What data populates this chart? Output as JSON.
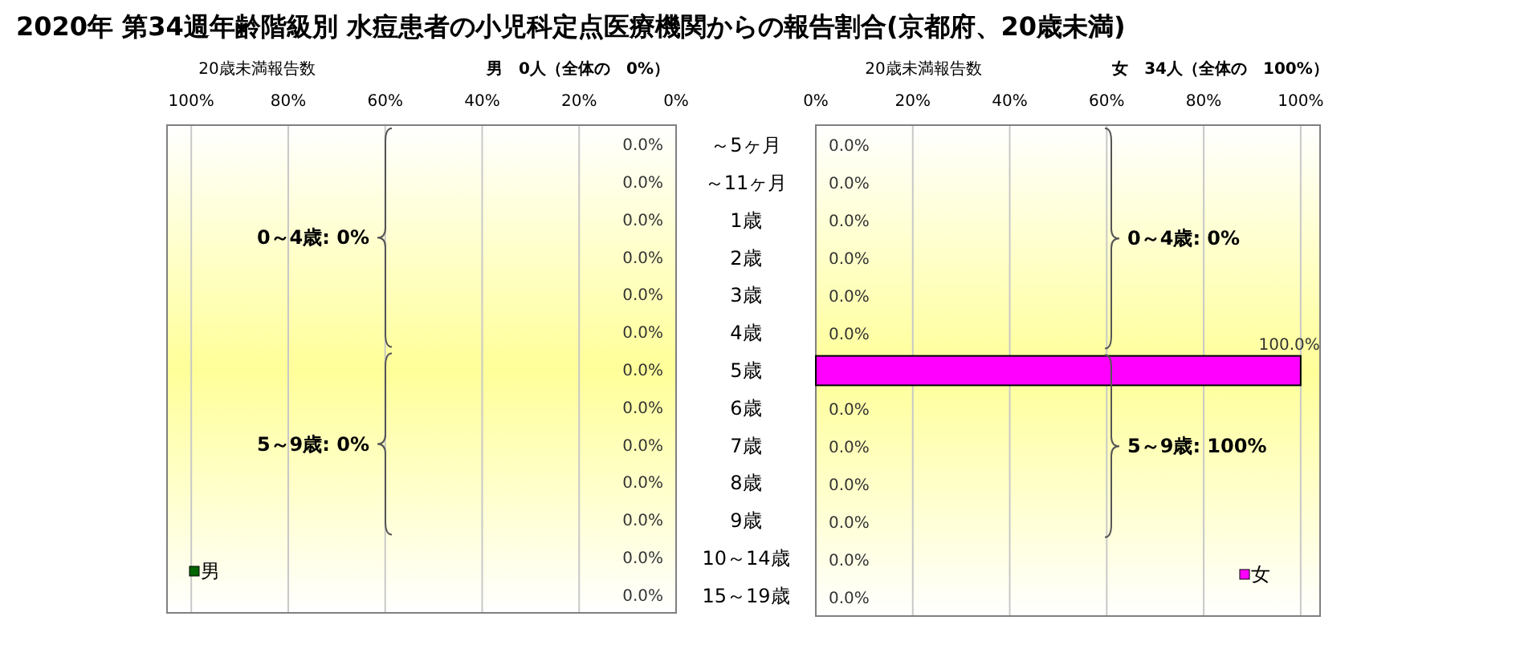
{
  "chart_data": [
    {
      "type": "bar",
      "orientation": "horizontal",
      "title": "2020年 第34週年齢階級別 水痘患者の小児科定点医療機関からの報告割合(京都府、20歳未満)",
      "categories": [
        "～5ヶ月",
        "～11ヶ月",
        "1歳",
        "2歳",
        "3歳",
        "4歳",
        "5歳",
        "6歳",
        "7歳",
        "8歳",
        "9歳",
        "10～14歳",
        "15～19歳"
      ],
      "series": [
        {
          "name": "男",
          "color": "#006400",
          "values": [
            0,
            0,
            0,
            0,
            0,
            0,
            0,
            0,
            0,
            0,
            0,
            0,
            0
          ],
          "value_labels": [
            "0.0%",
            "0.0%",
            "0.0%",
            "0.0%",
            "0.0%",
            "0.0%",
            "0.0%",
            "0.0%",
            "0.0%",
            "0.0%",
            "0.0%",
            "0.0%",
            "0.0%"
          ]
        }
      ],
      "xlim": [
        105,
        0
      ],
      "xticks": [
        {
          "value": 100,
          "label": "100%"
        },
        {
          "value": 80,
          "label": "80%"
        },
        {
          "value": 60,
          "label": "60%"
        },
        {
          "value": 40,
          "label": "40%"
        },
        {
          "value": 20,
          "label": "20%"
        },
        {
          "value": 0,
          "label": "0%"
        }
      ],
      "grid": "x",
      "legend": "bottom left",
      "annotations": [
        "20歳未満報告数",
        "男　0人（全体の　0%）",
        "0～4歳: 0%",
        "5～9歳: 0%"
      ]
    },
    {
      "type": "bar",
      "orientation": "horizontal",
      "categories": [
        null,
        null,
        null,
        null,
        null,
        null,
        null,
        null,
        null,
        null,
        null,
        null,
        null
      ],
      "series": [
        {
          "name": "女",
          "color": "#ff00ff",
          "values": [
            0,
            0,
            0,
            0,
            0,
            0,
            100,
            0,
            0,
            0,
            0,
            0,
            0
          ],
          "value_labels": [
            "0.0%",
            "0.0%",
            "0.0%",
            "0.0%",
            "0.0%",
            "0.0%",
            "100.0%",
            "0.0%",
            "0.0%",
            "0.0%",
            "0.0%",
            "0.0%",
            "0.0%"
          ]
        }
      ],
      "xlim": [
        0,
        104
      ],
      "xticks": [
        {
          "value": 0,
          "label": "0%"
        },
        {
          "value": 20,
          "label": "20%"
        },
        {
          "value": 40,
          "label": "40%"
        },
        {
          "value": 60,
          "label": "60%"
        },
        {
          "value": 80,
          "label": "80%"
        },
        {
          "value": 100,
          "label": "100%"
        }
      ],
      "grid": "x",
      "legend": "bottom right",
      "annotations": [
        "20歳未満報告数",
        "女　34人（全体の　100%）",
        "0～4歳: 0%",
        "5～9歳: 100%"
      ]
    }
  ]
}
